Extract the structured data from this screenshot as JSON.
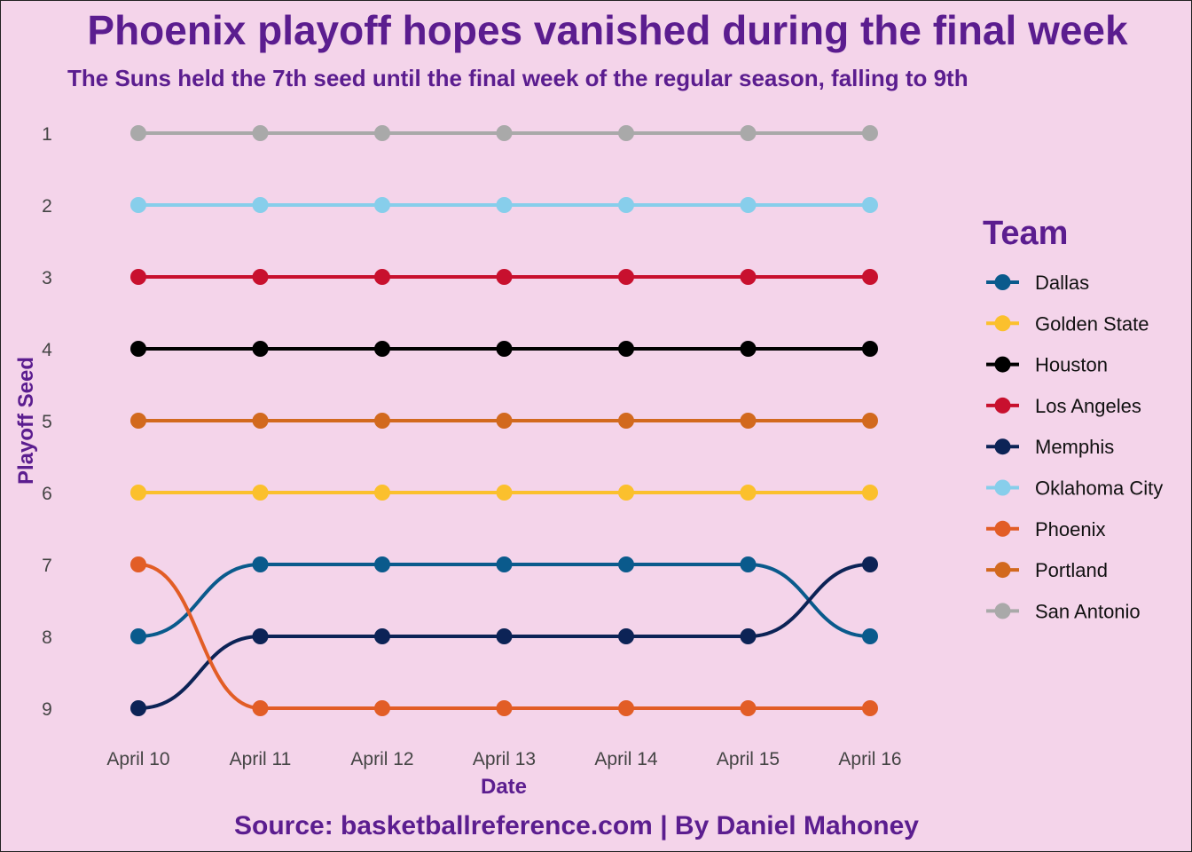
{
  "colors": {
    "background": "#f4d4ea",
    "title_color": "#5b1d8f"
  },
  "chart_data": {
    "type": "line",
    "title": "Phoenix playoff hopes vanished during the final week",
    "subtitle": "The Suns held the 7th seed until the final week of the regular season, falling to 9th",
    "caption": "Source: basketballreference.com | By Daniel Mahoney",
    "xlabel": "Date",
    "ylabel": "Playoff Seed",
    "legend_title": "Team",
    "legend_position": "right",
    "y_reversed": true,
    "ylim": [
      1,
      9
    ],
    "yticks": [
      "1",
      "2",
      "3",
      "4",
      "5",
      "6",
      "7",
      "8",
      "9"
    ],
    "categories": [
      "April 10",
      "April 11",
      "April 12",
      "April 13",
      "April 14",
      "April 15",
      "April 16"
    ],
    "grid": false,
    "series": [
      {
        "name": "Dallas",
        "color": "#0a5a8c",
        "values": [
          8,
          7,
          7,
          7,
          7,
          7,
          8
        ]
      },
      {
        "name": "Golden State",
        "color": "#fbc02d",
        "values": [
          6,
          6,
          6,
          6,
          6,
          6,
          6
        ]
      },
      {
        "name": "Houston",
        "color": "#000000",
        "values": [
          4,
          4,
          4,
          4,
          4,
          4,
          4
        ]
      },
      {
        "name": "Los Angeles",
        "color": "#c8102e",
        "values": [
          3,
          3,
          3,
          3,
          3,
          3,
          3
        ]
      },
      {
        "name": "Memphis",
        "color": "#0c2356",
        "values": [
          9,
          8,
          8,
          8,
          8,
          8,
          7
        ]
      },
      {
        "name": "Oklahoma City",
        "color": "#87ceeb",
        "values": [
          2,
          2,
          2,
          2,
          2,
          2,
          2
        ]
      },
      {
        "name": "Phoenix",
        "color": "#e25d26",
        "values": [
          7,
          9,
          9,
          9,
          9,
          9,
          9
        ]
      },
      {
        "name": "Portland",
        "color": "#d2691e",
        "values": [
          5,
          5,
          5,
          5,
          5,
          5,
          5
        ]
      },
      {
        "name": "San Antonio",
        "color": "#a9a9a9",
        "values": [
          1,
          1,
          1,
          1,
          1,
          1,
          1
        ]
      }
    ]
  }
}
